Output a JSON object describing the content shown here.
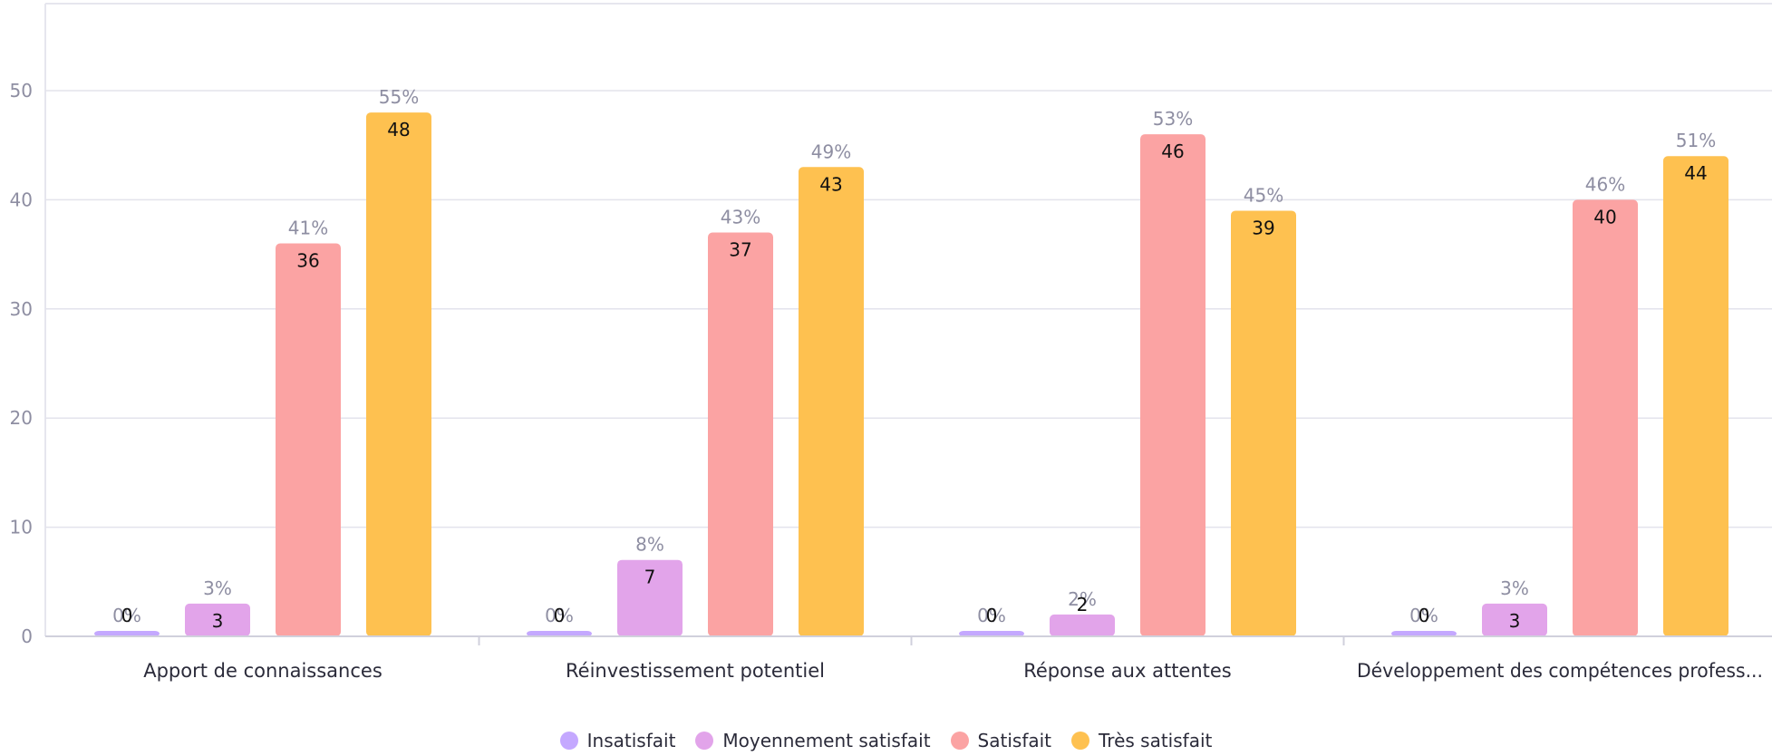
{
  "chart_data": {
    "type": "bar",
    "title": "",
    "xlabel": "",
    "ylabel": "",
    "ylim": [
      0,
      55
    ],
    "yticks": [
      0,
      10,
      20,
      30,
      40,
      50
    ],
    "grid": true,
    "legend_position": "bottom",
    "categories": [
      "Apport de connaissances",
      "Réinvestissement potentiel",
      "Réponse aux attentes",
      "Développement des compétences profess..."
    ],
    "series": [
      {
        "name": "Insatisfait",
        "color": "#c4a8ff",
        "values": [
          0,
          0,
          0,
          0
        ],
        "percent_labels": [
          "0%",
          "0%",
          "0%",
          "0%"
        ]
      },
      {
        "name": "Moyennement satisfait",
        "color": "#e2a4ea",
        "values": [
          3,
          7,
          2,
          3
        ],
        "percent_labels": [
          "3%",
          "8%",
          "2%",
          "3%"
        ]
      },
      {
        "name": "Satisfait",
        "color": "#fba3a3",
        "values": [
          36,
          37,
          46,
          40
        ],
        "percent_labels": [
          "41%",
          "43%",
          "53%",
          "46%"
        ]
      },
      {
        "name": "Très satisfait",
        "color": "#fec150",
        "values": [
          48,
          43,
          39,
          44
        ],
        "percent_labels": [
          "55%",
          "49%",
          "45%",
          "51%"
        ]
      }
    ]
  }
}
